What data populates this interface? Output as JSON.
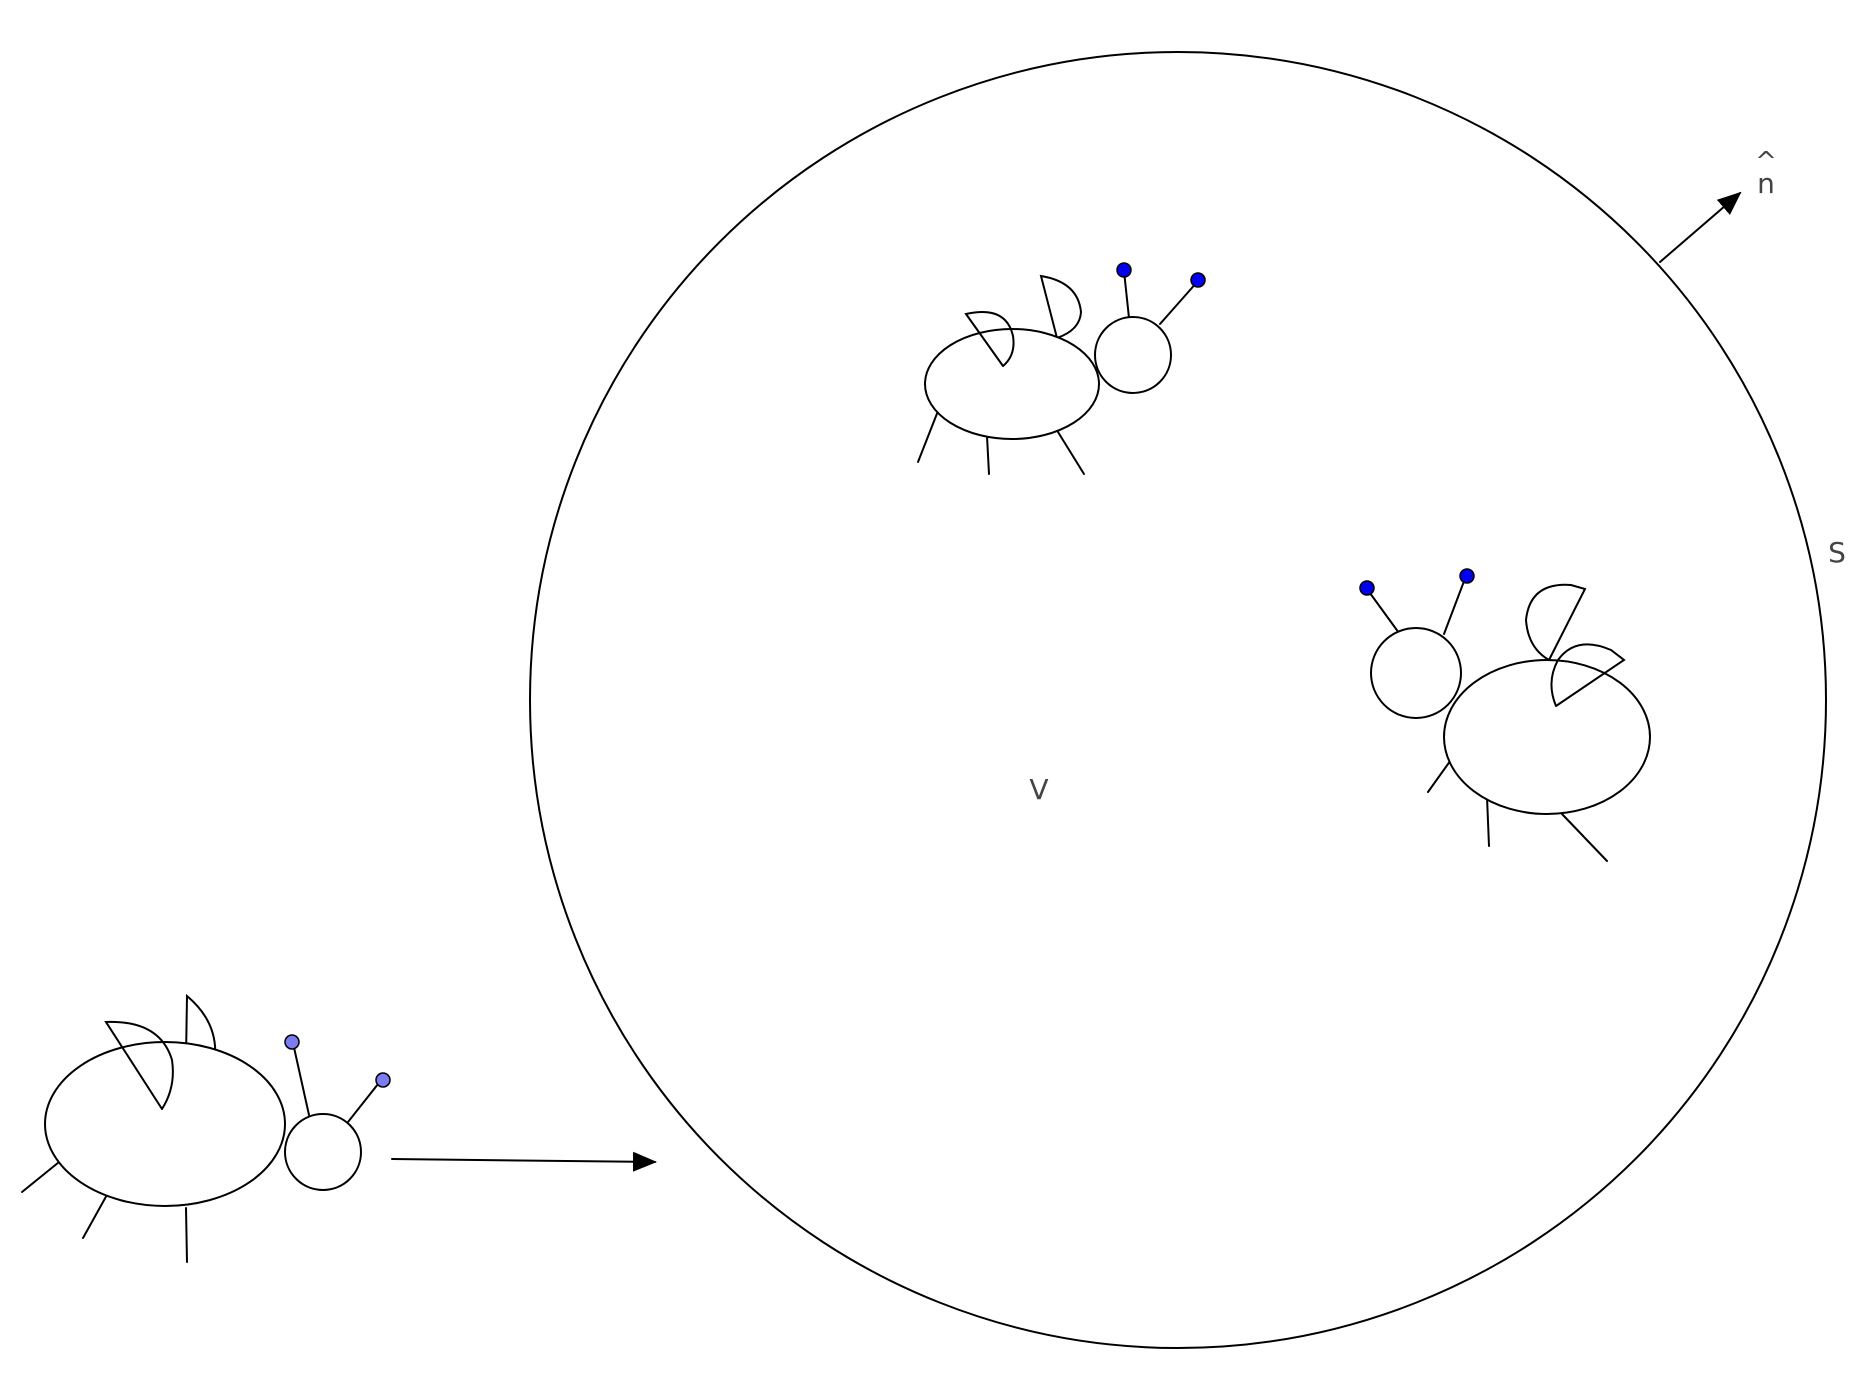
{
  "labels": {
    "volume": "V",
    "surface": "S",
    "normal_letter": "n",
    "normal_hat": "^"
  },
  "colors": {
    "outline": "#000000",
    "label": "#444444",
    "antenna_tip_inside": "#0000ee",
    "antenna_tip_outside": "#7b7bf2"
  },
  "icons": {
    "entering_bug": "bug-icon",
    "inside_bug_upper": "bug-icon",
    "inside_bug_right": "bug-icon",
    "motion_arrow": "arrow-right-icon",
    "normal_vector": "arrow-up-right-icon"
  }
}
